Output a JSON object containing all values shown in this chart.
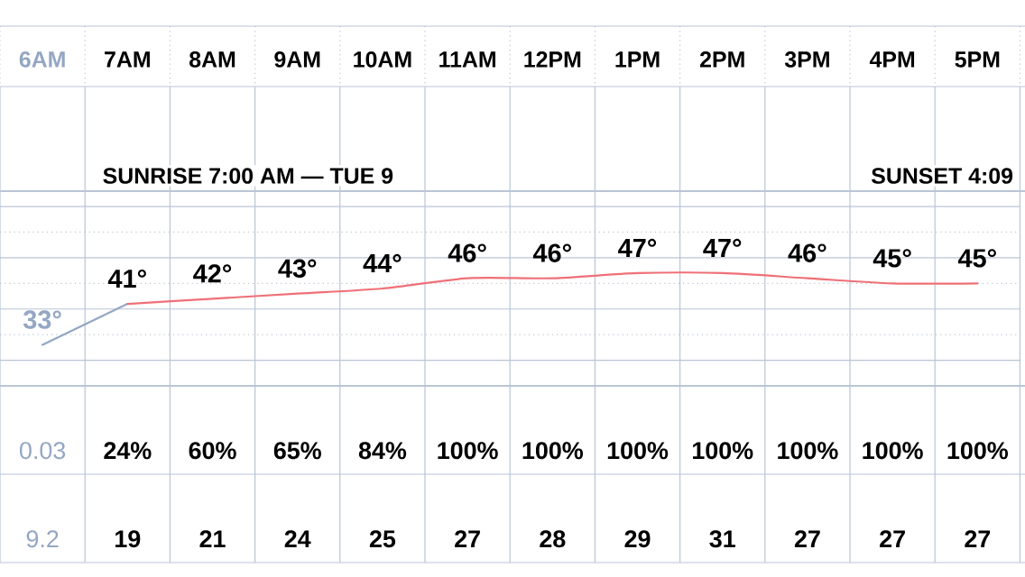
{
  "chart_data": [
    {
      "type": "line",
      "categories": [
        "6AM",
        "7AM",
        "8AM",
        "9AM",
        "10AM",
        "11AM",
        "12PM",
        "1PM",
        "2PM",
        "3PM",
        "4PM",
        "5PM"
      ],
      "series": [
        {
          "color": "#94a6c4",
          "values": [
            33,
            41,
            null,
            null,
            null,
            null,
            null,
            null,
            null,
            null,
            null,
            null
          ],
          "value_labels": [
            "33°",
            null,
            null,
            null,
            null,
            null,
            null,
            null,
            null,
            null,
            null,
            null
          ]
        },
        {
          "color": "#ef7077",
          "values": [
            null,
            41,
            42,
            43,
            44,
            46,
            46,
            47,
            47,
            46,
            45,
            45
          ],
          "value_labels": [
            null,
            "41°",
            "42°",
            "43°",
            "44°",
            "46°",
            "46°",
            "47°",
            "47°",
            "46°",
            "45°",
            "45°"
          ]
        }
      ],
      "ylim": [
        25,
        63
      ],
      "yticks": [
        {
          "value": 30,
          "label": null
        },
        {
          "value": 35,
          "label": null
        },
        {
          "value": 40,
          "label": null
        },
        {
          "value": 45,
          "label": null
        },
        {
          "value": 50,
          "label": null
        },
        {
          "value": 55,
          "label": null
        },
        {
          "value": 60,
          "label": null
        }
      ],
      "grid": "y",
      "tick_labels": "x",
      "annotations": [
        "SUNRISE 7:00 AM — TUE 9",
        "SUNSET 4:09"
      ]
    },
    {
      "type": "other",
      "values": [
        null,
        24,
        60,
        65,
        84,
        100,
        100,
        100,
        100,
        100,
        100,
        100
      ],
      "value_labels": [
        null,
        "24%",
        "60%",
        "65%",
        "84%",
        "100%",
        "100%",
        "100%",
        "100%",
        "100%",
        "100%",
        "100%"
      ],
      "annotations": [
        "0.03"
      ]
    },
    {
      "type": "other",
      "values": [
        null,
        19,
        21,
        24,
        25,
        27,
        28,
        29,
        31,
        27,
        27,
        27
      ],
      "data_labels": true,
      "annotations": [
        "9.2"
      ]
    }
  ]
}
